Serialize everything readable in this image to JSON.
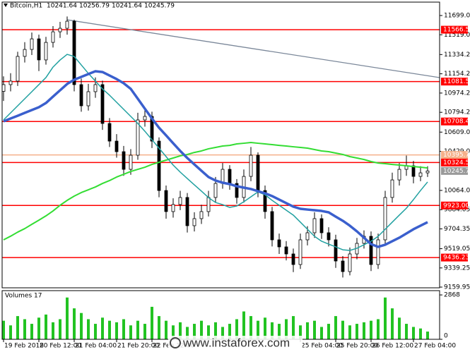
{
  "chart_data": {
    "type": "candlestick",
    "symbol": "Bitcoin,H1",
    "header_values": [
      10241.64,
      10256.79,
      10241.64,
      10245.79
    ],
    "watermark": "www.instaforex.com",
    "categories": [
      "19 Feb 2018",
      null,
      null,
      null,
      null,
      "20 Feb 12:00",
      null,
      null,
      null,
      null,
      "21 Feb 04:00",
      null,
      null,
      null,
      null,
      null,
      "21 Feb 20:00",
      null,
      null,
      null,
      null,
      "22 Feb 12:00",
      null,
      null,
      null,
      null,
      null,
      null,
      null,
      null,
      null,
      null,
      null,
      null,
      null,
      null,
      null,
      null,
      null,
      null,
      null,
      null,
      "25 Feb 04:00",
      null,
      null,
      null,
      null,
      "25 Feb 20:00",
      null,
      null,
      null,
      null,
      "26 Feb 12:00",
      null,
      null,
      null,
      null,
      null,
      "27 Feb 04:00",
      null,
      null
    ],
    "open": [
      10990,
      11053,
      11086,
      11317,
      11382,
      11481,
      11284,
      11448,
      11547,
      11580,
      11646,
      11053,
      10855,
      10987,
      11053,
      10690,
      10525,
      10426,
      10261,
      10393,
      10723,
      10756,
      10525,
      10063,
      9866,
      9932,
      9998,
      9734,
      9800,
      9866,
      9998,
      10129,
      10261,
      10129,
      9998,
      10195,
      10393,
      10063,
      9866,
      9602,
      9536,
      9470,
      9371,
      9602,
      9668,
      9800,
      9668,
      9602,
      9404,
      9305,
      9470,
      9569,
      9635,
      9371,
      9602,
      9998,
      10162,
      10261,
      10294,
      10195,
      10228
    ],
    "high": [
      11130,
      11160,
      11360,
      11450,
      11540,
      11520,
      11500,
      11600,
      11640,
      11690,
      11660,
      11110,
      11060,
      11120,
      11090,
      10740,
      10590,
      10480,
      10450,
      10790,
      10830,
      10800,
      10560,
      10110,
      9990,
      10060,
      10040,
      9860,
      9930,
      10060,
      10190,
      10320,
      10300,
      10170,
      10260,
      10470,
      10420,
      10110,
      9910,
      9660,
      9590,
      9520,
      9660,
      9730,
      9860,
      9840,
      9720,
      9650,
      9450,
      9530,
      9620,
      9690,
      9680,
      9660,
      10060,
      10230,
      10320,
      10390,
      10340,
      10290,
      10290
    ],
    "low": [
      10900,
      10990,
      11040,
      11260,
      11330,
      11180,
      11240,
      11400,
      11490,
      11520,
      10990,
      10800,
      10810,
      10930,
      10630,
      10470,
      10370,
      10200,
      10210,
      10350,
      10660,
      10460,
      10000,
      9800,
      9810,
      9880,
      9670,
      9680,
      9750,
      9820,
      9950,
      10080,
      10070,
      9940,
      9950,
      10150,
      10000,
      9800,
      9540,
      9470,
      9410,
      9300,
      9330,
      9550,
      9620,
      9610,
      9540,
      9340,
      9250,
      9270,
      9420,
      9520,
      9310,
      9330,
      9560,
      9950,
      10110,
      10200,
      10130,
      10150,
      10190
    ],
    "close": [
      11053,
      11086,
      11317,
      11382,
      11481,
      11284,
      11448,
      11547,
      11580,
      11646,
      11053,
      10855,
      10987,
      11053,
      10690,
      10525,
      10426,
      10261,
      10393,
      10723,
      10756,
      10525,
      10063,
      9866,
      9932,
      9998,
      9734,
      9800,
      9866,
      9998,
      10129,
      10261,
      10129,
      9998,
      10195,
      10393,
      10063,
      9866,
      9602,
      9536,
      9470,
      9371,
      9602,
      9668,
      9800,
      9668,
      9602,
      9404,
      9305,
      9470,
      9569,
      9635,
      9371,
      9602,
      9998,
      10162,
      10261,
      10294,
      10195,
      10228,
      10245.79
    ],
    "series": [
      {
        "color": "#33dd33",
        "width": 2,
        "values": [
          9602,
          9636,
          9674,
          9707,
          9747,
          9786,
          9826,
          9872,
          9925,
          9971,
          10011,
          10044,
          10070,
          10096,
          10129,
          10156,
          10189,
          10215,
          10241,
          10261,
          10281,
          10307,
          10327,
          10347,
          10367,
          10387,
          10400,
          10419,
          10433,
          10453,
          10466,
          10479,
          10485,
          10499,
          10505,
          10512,
          10505,
          10499,
          10492,
          10485,
          10479,
          10472,
          10466,
          10459,
          10446,
          10433,
          10426,
          10413,
          10400,
          10380,
          10367,
          10353,
          10334,
          10320,
          10314,
          10307,
          10301,
          10294,
          10287,
          10281,
          10274
        ]
      },
      {
        "color": "#20a0a0",
        "width": 1.5,
        "values": [
          10723,
          10789,
          10855,
          10921,
          10987,
          11053,
          11119,
          11217,
          11283,
          11336,
          11316,
          11237,
          11158,
          11086,
          11013,
          10954,
          10888,
          10822,
          10756,
          10690,
          10617,
          10538,
          10459,
          10380,
          10301,
          10235,
          10175,
          10116,
          10057,
          9997,
          9951,
          9931,
          9905,
          9918,
          9958,
          10004,
          10050,
          10024,
          9971,
          9925,
          9879,
          9833,
          9767,
          9701,
          9635,
          9589,
          9562,
          9536,
          9509,
          9503,
          9523,
          9556,
          9589,
          9635,
          9701,
          9767,
          9833,
          9898,
          9978,
          10063,
          10143
        ]
      },
      {
        "color": "#3a5fcd",
        "width": 3.5,
        "values": [
          10710,
          10736,
          10762,
          10789,
          10815,
          10842,
          10881,
          10941,
          11000,
          11059,
          11099,
          11125,
          11152,
          11178,
          11171,
          11138,
          11105,
          11066,
          11013,
          10921,
          10828,
          10736,
          10650,
          10578,
          10505,
          10433,
          10367,
          10307,
          10248,
          10189,
          10156,
          10136,
          10123,
          10103,
          10090,
          10077,
          10057,
          10037,
          10011,
          9978,
          9945,
          9912,
          9892,
          9885,
          9879,
          9872,
          9859,
          9819,
          9780,
          9734,
          9681,
          9622,
          9562,
          9536,
          9556,
          9589,
          9622,
          9661,
          9701,
          9734,
          9767
        ]
      }
    ],
    "trend_line": [
      11659,
      11119
    ],
    "trend_color": "#7a8799",
    "levels": [
      {
        "value": 11566.58,
        "color": "#ff0000"
      },
      {
        "value": 11081.55,
        "color": "#ff0000"
      },
      {
        "value": 10708.4,
        "label": "10708.40",
        "color": "#ff0000"
      },
      {
        "value": 10395.79,
        "color": "#f5b08a"
      },
      {
        "value": 10324.54,
        "color": "#ff0000"
      },
      {
        "value": 9923,
        "label": "9923.00",
        "color": "#ff0000"
      },
      {
        "value": 9436.23,
        "color": "#ff0000"
      }
    ],
    "ylim": [
      9153.4,
      11824.4
    ],
    "yticks": [
      11699.05,
      11519.05,
      11334.25,
      11154.25,
      {
        "value": 10974.2,
        "label": "10974.20"
      },
      {
        "value": 10794.2,
        "label": "10794.20"
      },
      10609.05,
      {
        "value": 10429,
        "label": "10429.00"
      },
      10064.06,
      9884.05,
      9704.35,
      9519.05,
      9339.25,
      9159.95
    ],
    "volume": {
      "title": "Volumes 17",
      "color": "#22c322",
      "ylim": [
        0,
        3145
      ],
      "yticks": [
        2868,
        0
      ],
      "values": [
        1200,
        900,
        1500,
        1300,
        1000,
        1400,
        1600,
        1100,
        1300,
        2700,
        2000,
        1700,
        1300,
        1000,
        1400,
        1200,
        1100,
        1300,
        900,
        1200,
        1000,
        2100,
        1500,
        1200,
        900,
        1100,
        800,
        1000,
        1200,
        900,
        1100,
        800,
        1000,
        1300,
        1800,
        1500,
        1200,
        1400,
        1100,
        1000,
        1300,
        1500,
        900,
        1100,
        1200,
        800,
        1000,
        1500,
        1200,
        900,
        1000,
        1100,
        1200,
        1300,
        2700,
        2000,
        1400,
        1000,
        800,
        700,
        500
      ]
    }
  }
}
